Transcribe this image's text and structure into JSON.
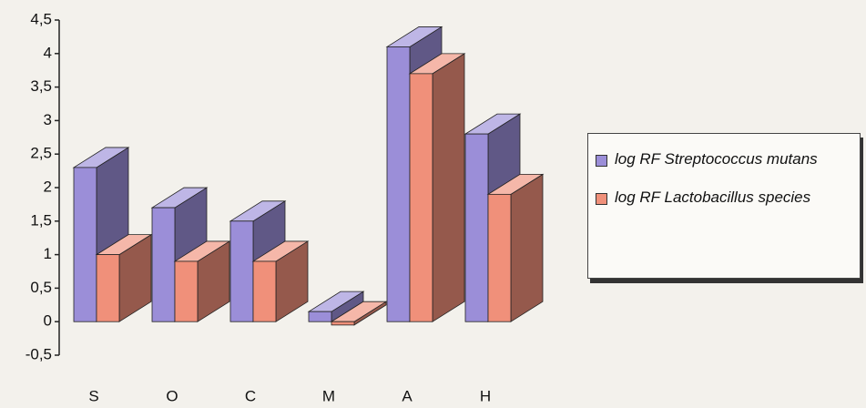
{
  "chart_data": {
    "type": "bar3d",
    "categories": [
      "S",
      "O",
      "C",
      "M",
      "A",
      "H"
    ],
    "series": [
      {
        "name": "log RF Streptococcus mutans",
        "color": "#9b8ed8",
        "values": [
          2.3,
          1.7,
          1.5,
          0.15,
          4.1,
          2.8
        ]
      },
      {
        "name": "log RF Lactobacillus species",
        "color": "#f0907a",
        "values": [
          1.0,
          0.9,
          0.9,
          -0.05,
          3.7,
          1.9
        ]
      }
    ],
    "ylim": [
      -0.5,
      4.5
    ],
    "yticks": [
      {
        "value": -0.5,
        "label": "-0,5"
      },
      0,
      {
        "value": 0.5,
        "label": "0,5"
      },
      1,
      {
        "value": 1.5,
        "label": "1,5"
      },
      2,
      {
        "value": 2.5,
        "label": "2,5"
      },
      3,
      {
        "value": 3.5,
        "label": "3,5"
      },
      4,
      {
        "value": 4.5,
        "label": "4,5"
      }
    ],
    "legend": "right"
  }
}
